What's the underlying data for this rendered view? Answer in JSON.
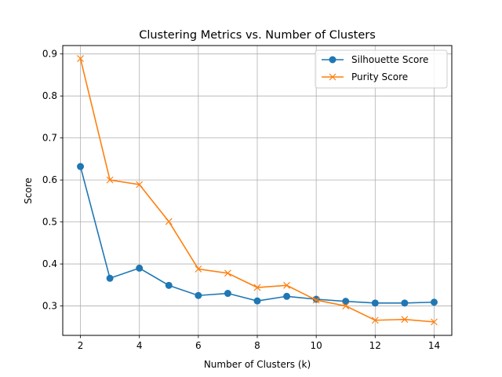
{
  "chart_data": {
    "type": "line",
    "title": "Clustering Metrics vs. Number of Clusters",
    "xlabel": "Number of Clusters (k)",
    "ylabel": "Score",
    "x": [
      2,
      3,
      4,
      5,
      6,
      7,
      8,
      9,
      10,
      11,
      12,
      13,
      14
    ],
    "xlim": [
      1.4,
      14.6
    ],
    "ylim": [
      0.23,
      0.92
    ],
    "xticks": [
      2,
      4,
      6,
      8,
      10,
      12,
      14
    ],
    "yticks": [
      0.3,
      0.4,
      0.5,
      0.6,
      0.7,
      0.8,
      0.9
    ],
    "grid": true,
    "legend_position": "top-right",
    "series": [
      {
        "name": "Silhouette Score",
        "color": "#1f77b4",
        "marker": "circle",
        "values": [
          0.632,
          0.366,
          0.39,
          0.349,
          0.325,
          0.33,
          0.312,
          0.323,
          0.316,
          0.311,
          0.307,
          0.307,
          0.309
        ]
      },
      {
        "name": "Purity Score",
        "color": "#ff7f0e",
        "marker": "x",
        "values": [
          0.889,
          0.6,
          0.589,
          0.501,
          0.388,
          0.378,
          0.344,
          0.349,
          0.314,
          0.3,
          0.266,
          0.268,
          0.262
        ]
      }
    ]
  }
}
